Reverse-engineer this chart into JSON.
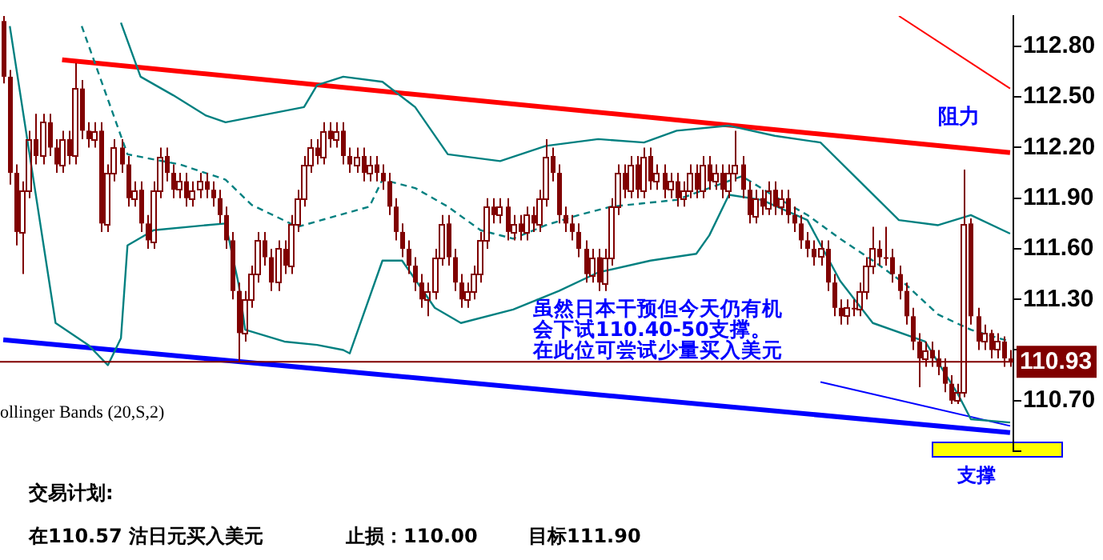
{
  "chart_data": {
    "type": "candlestick",
    "color": "#800000",
    "categories": [
      null,
      null,
      null,
      null,
      null,
      null,
      null,
      null,
      null,
      null,
      null,
      null,
      null,
      null,
      null,
      null,
      null,
      null,
      null,
      null,
      null,
      null,
      null,
      null,
      null,
      null,
      null,
      null,
      null,
      null,
      null,
      null,
      null,
      null,
      null,
      null,
      null,
      null,
      null,
      null,
      null,
      null,
      null,
      null,
      null,
      null,
      null,
      null,
      null,
      null,
      null,
      null,
      null,
      null,
      null,
      null,
      null,
      null,
      null,
      null,
      null,
      null,
      null,
      null,
      null,
      null,
      null,
      null,
      null,
      null,
      null,
      null,
      null,
      null,
      null,
      null,
      null,
      null,
      null,
      null,
      null,
      null,
      null,
      null,
      null,
      null,
      null,
      null,
      null,
      null,
      null,
      null,
      null,
      null,
      null,
      null,
      null,
      null,
      null,
      null,
      null,
      null,
      null,
      null,
      null,
      null,
      null,
      null,
      null,
      null,
      null,
      null,
      null,
      null,
      null,
      null,
      null,
      null,
      null,
      null,
      null,
      null,
      null,
      null,
      null,
      null,
      null,
      null,
      null,
      null,
      null,
      null,
      null,
      null,
      null,
      null,
      null,
      null,
      null,
      null,
      null,
      null,
      null,
      null,
      null,
      null,
      null,
      null,
      null,
      null,
      null,
      null,
      null,
      null,
      null
    ],
    "ohlc": [
      [
        112.95,
        112.98,
        112.58,
        112.62
      ],
      [
        112.62,
        112.66,
        111.98,
        112.05
      ],
      [
        112.05,
        112.1,
        111.62,
        111.7
      ],
      [
        111.7,
        112.0,
        111.45,
        111.95
      ],
      [
        111.95,
        112.3,
        111.9,
        112.25
      ],
      [
        112.25,
        112.4,
        112.1,
        112.15
      ],
      [
        112.15,
        112.4,
        112.1,
        112.35
      ],
      [
        112.35,
        112.4,
        112.15,
        112.2
      ],
      [
        112.2,
        112.25,
        112.05,
        112.1
      ],
      [
        112.1,
        112.3,
        112.05,
        112.25
      ],
      [
        112.25,
        112.3,
        112.1,
        112.15
      ],
      [
        112.15,
        112.7,
        112.1,
        112.55
      ],
      [
        112.55,
        112.6,
        112.25,
        112.3
      ],
      [
        112.3,
        112.35,
        112.2,
        112.25
      ],
      [
        112.25,
        112.35,
        112.2,
        112.3
      ],
      [
        112.3,
        112.35,
        111.7,
        111.75
      ],
      [
        111.75,
        112.1,
        111.7,
        112.05
      ],
      [
        112.05,
        112.25,
        112.0,
        112.2
      ],
      [
        112.2,
        112.25,
        112.05,
        112.1
      ],
      [
        112.1,
        112.15,
        111.85,
        111.9
      ],
      [
        111.9,
        112.0,
        111.85,
        111.95
      ],
      [
        111.95,
        112.0,
        111.7,
        111.75
      ],
      [
        111.75,
        111.8,
        111.6,
        111.65
      ],
      [
        111.65,
        112.0,
        111.6,
        111.95
      ],
      [
        111.95,
        112.2,
        111.9,
        112.15
      ],
      [
        112.15,
        112.2,
        112.0,
        112.05
      ],
      [
        112.05,
        112.1,
        111.9,
        111.95
      ],
      [
        111.95,
        112.05,
        111.9,
        112.0
      ],
      [
        112.0,
        112.05,
        111.85,
        111.9
      ],
      [
        111.9,
        112.0,
        111.85,
        111.95
      ],
      [
        111.95,
        112.05,
        111.9,
        112.0
      ],
      [
        112.0,
        112.05,
        111.9,
        111.95
      ],
      [
        111.95,
        112.0,
        111.85,
        111.9
      ],
      [
        111.9,
        111.95,
        111.75,
        111.8
      ],
      [
        111.8,
        111.85,
        111.6,
        111.65
      ],
      [
        111.65,
        111.7,
        111.3,
        111.35
      ],
      [
        111.35,
        111.4,
        110.93,
        111.1
      ],
      [
        111.1,
        111.35,
        111.05,
        111.3
      ],
      [
        111.3,
        111.5,
        111.25,
        111.45
      ],
      [
        111.45,
        111.7,
        111.4,
        111.65
      ],
      [
        111.65,
        111.7,
        111.5,
        111.55
      ],
      [
        111.55,
        111.6,
        111.35,
        111.4
      ],
      [
        111.4,
        111.65,
        111.35,
        111.6
      ],
      [
        111.6,
        111.65,
        111.45,
        111.5
      ],
      [
        111.5,
        111.8,
        111.45,
        111.75
      ],
      [
        111.75,
        111.95,
        111.7,
        111.9
      ],
      [
        111.9,
        112.15,
        111.85,
        112.1
      ],
      [
        112.1,
        112.25,
        112.05,
        112.2
      ],
      [
        112.2,
        112.25,
        112.1,
        112.15
      ],
      [
        112.15,
        112.35,
        112.1,
        112.3
      ],
      [
        112.3,
        112.35,
        112.2,
        112.25
      ],
      [
        112.25,
        112.35,
        112.2,
        112.3
      ],
      [
        112.3,
        112.35,
        112.1,
        112.15
      ],
      [
        112.15,
        112.2,
        112.05,
        112.1
      ],
      [
        112.1,
        112.2,
        112.05,
        112.15
      ],
      [
        112.15,
        112.2,
        112.0,
        112.05
      ],
      [
        112.05,
        112.15,
        112.0,
        112.1
      ],
      [
        112.1,
        112.15,
        112.0,
        112.05
      ],
      [
        112.05,
        112.1,
        111.95,
        112.0
      ],
      [
        112.0,
        112.05,
        111.8,
        111.85
      ],
      [
        111.85,
        111.9,
        111.65,
        111.7
      ],
      [
        111.7,
        111.75,
        111.55,
        111.6
      ],
      [
        111.6,
        111.65,
        111.45,
        111.5
      ],
      [
        111.5,
        111.55,
        111.35,
        111.4
      ],
      [
        111.4,
        111.45,
        111.25,
        111.3
      ],
      [
        111.3,
        111.4,
        111.2,
        111.35
      ],
      [
        111.35,
        111.6,
        111.3,
        111.55
      ],
      [
        111.55,
        111.8,
        111.5,
        111.75
      ],
      [
        111.75,
        111.8,
        111.5,
        111.55
      ],
      [
        111.55,
        111.6,
        111.35,
        111.4
      ],
      [
        111.4,
        111.45,
        111.25,
        111.3
      ],
      [
        111.3,
        111.4,
        111.25,
        111.35
      ],
      [
        111.35,
        111.5,
        111.3,
        111.45
      ],
      [
        111.45,
        111.7,
        111.4,
        111.65
      ],
      [
        111.65,
        111.9,
        111.6,
        111.85
      ],
      [
        111.85,
        111.9,
        111.75,
        111.8
      ],
      [
        111.8,
        111.9,
        111.75,
        111.85
      ],
      [
        111.85,
        111.9,
        111.65,
        111.7
      ],
      [
        111.7,
        111.8,
        111.65,
        111.75
      ],
      [
        111.75,
        111.8,
        111.65,
        111.7
      ],
      [
        111.7,
        111.85,
        111.65,
        111.8
      ],
      [
        111.8,
        111.85,
        111.7,
        111.75
      ],
      [
        111.75,
        111.95,
        111.7,
        111.9
      ],
      [
        111.9,
        112.25,
        111.85,
        112.15
      ],
      [
        112.15,
        112.2,
        112.0,
        112.05
      ],
      [
        112.05,
        112.1,
        111.75,
        111.8
      ],
      [
        111.8,
        111.85,
        111.7,
        111.75
      ],
      [
        111.75,
        111.8,
        111.65,
        111.7
      ],
      [
        111.7,
        111.75,
        111.55,
        111.6
      ],
      [
        111.6,
        111.65,
        111.4,
        111.45
      ],
      [
        111.45,
        111.6,
        111.4,
        111.55
      ],
      [
        111.55,
        111.6,
        111.35,
        111.4
      ],
      [
        111.4,
        111.6,
        111.35,
        111.55
      ],
      [
        111.55,
        111.9,
        111.5,
        111.85
      ],
      [
        111.85,
        112.1,
        111.8,
        112.05
      ],
      [
        112.05,
        112.1,
        111.9,
        111.95
      ],
      [
        111.95,
        112.15,
        111.9,
        112.1
      ],
      [
        112.1,
        112.15,
        111.9,
        111.95
      ],
      [
        111.95,
        112.2,
        111.9,
        112.15
      ],
      [
        112.15,
        112.2,
        111.95,
        112.0
      ],
      [
        112.0,
        112.1,
        111.95,
        112.05
      ],
      [
        112.05,
        112.1,
        111.9,
        111.95
      ],
      [
        111.95,
        112.05,
        111.9,
        112.0
      ],
      [
        112.0,
        112.05,
        111.85,
        111.9
      ],
      [
        111.9,
        112.0,
        111.85,
        111.95
      ],
      [
        111.95,
        112.1,
        111.9,
        112.05
      ],
      [
        112.05,
        112.1,
        111.9,
        111.95
      ],
      [
        111.95,
        112.15,
        111.9,
        112.1
      ],
      [
        112.1,
        112.15,
        111.95,
        112.0
      ],
      [
        112.0,
        112.1,
        111.95,
        112.05
      ],
      [
        112.05,
        112.1,
        111.9,
        111.95
      ],
      [
        111.95,
        112.1,
        111.9,
        112.05
      ],
      [
        112.05,
        112.3,
        112.0,
        112.1
      ],
      [
        112.1,
        112.15,
        111.9,
        111.95
      ],
      [
        111.95,
        112.0,
        111.75,
        111.8
      ],
      [
        111.8,
        111.95,
        111.75,
        111.9
      ],
      [
        111.9,
        111.95,
        111.8,
        111.85
      ],
      [
        111.85,
        112.0,
        111.8,
        111.95
      ],
      [
        111.95,
        112.0,
        111.8,
        111.85
      ],
      [
        111.85,
        111.95,
        111.8,
        111.9
      ],
      [
        111.9,
        111.95,
        111.75,
        111.8
      ],
      [
        111.8,
        111.85,
        111.7,
        111.75
      ],
      [
        111.75,
        111.8,
        111.6,
        111.65
      ],
      [
        111.65,
        111.7,
        111.55,
        111.6
      ],
      [
        111.6,
        111.65,
        111.5,
        111.55
      ],
      [
        111.55,
        111.65,
        111.5,
        111.6
      ],
      [
        111.6,
        111.65,
        111.35,
        111.4
      ],
      [
        111.4,
        111.45,
        111.2,
        111.25
      ],
      [
        111.25,
        111.3,
        111.15,
        111.2
      ],
      [
        111.2,
        111.3,
        111.15,
        111.25
      ],
      [
        111.25,
        111.3,
        111.2,
        111.25
      ],
      [
        111.25,
        111.4,
        111.2,
        111.35
      ],
      [
        111.35,
        111.55,
        111.3,
        111.5
      ],
      [
        111.5,
        111.73,
        111.45,
        111.6
      ],
      [
        111.6,
        111.65,
        111.5,
        111.55
      ],
      [
        111.55,
        111.73,
        111.5,
        111.55
      ],
      [
        111.55,
        111.6,
        111.4,
        111.45
      ],
      [
        111.45,
        111.5,
        111.3,
        111.35
      ],
      [
        111.35,
        111.4,
        111.15,
        111.2
      ],
      [
        111.2,
        111.25,
        111.0,
        111.05
      ],
      [
        111.05,
        111.1,
        110.78,
        110.95
      ],
      [
        110.95,
        111.05,
        110.9,
        111.0
      ],
      [
        111.0,
        111.05,
        110.9,
        110.95
      ],
      [
        110.95,
        111.0,
        110.85,
        110.9
      ],
      [
        110.9,
        110.95,
        110.75,
        110.8
      ],
      [
        110.8,
        110.85,
        110.68,
        110.7
      ],
      [
        110.7,
        110.8,
        110.68,
        110.75
      ],
      [
        110.75,
        112.07,
        110.72,
        111.75
      ],
      [
        111.75,
        111.78,
        111.15,
        111.2
      ],
      [
        111.2,
        111.25,
        111.0,
        111.05
      ],
      [
        111.05,
        111.15,
        111.0,
        111.1
      ],
      [
        111.1,
        111.12,
        110.95,
        111.0
      ],
      [
        111.0,
        111.1,
        110.95,
        111.05
      ],
      [
        111.05,
        111.08,
        110.9,
        110.95
      ],
      [
        110.95,
        111.0,
        110.9,
        110.93
      ]
    ],
    "series": [
      {
        "type": "line",
        "color": "#008080",
        "values": [
          null,
          null,
          null,
          null,
          null,
          null,
          null,
          null,
          null,
          null,
          null,
          null,
          null,
          null,
          null,
          null,
          null,
          null,
          112.94,
          null,
          null,
          112.62,
          null,
          null,
          null,
          null,
          112.51,
          null,
          null,
          null,
          null,
          112.39,
          null,
          null,
          112.35,
          null,
          null,
          null,
          null,
          null,
          null,
          null,
          null,
          null,
          null,
          null,
          112.44,
          null,
          112.57,
          null,
          null,
          null,
          112.62,
          null,
          null,
          null,
          null,
          null,
          112.59,
          null,
          null,
          null,
          null,
          112.44,
          null,
          null,
          null,
          null,
          112.16,
          null,
          null,
          null,
          null,
          null,
          null,
          null,
          112.12,
          null,
          null,
          null,
          null,
          null,
          null,
          112.21,
          null,
          null,
          null,
          null,
          null,
          null,
          null,
          112.25,
          null,
          null,
          null,
          null,
          null,
          null,
          112.23,
          null,
          null,
          null,
          null,
          112.3,
          null,
          null,
          null,
          null,
          null,
          null,
          null,
          112.33,
          null,
          null,
          null,
          null,
          null,
          null,
          112.27,
          null,
          null,
          null,
          null,
          null,
          null,
          112.23,
          null,
          null,
          null,
          null,
          null,
          null,
          null,
          null,
          null,
          null,
          null,
          111.77,
          null,
          null,
          null,
          null,
          null,
          111.74,
          null,
          null,
          null,
          null,
          111.8,
          null,
          null,
          null,
          null,
          null,
          111.69
        ]
      },
      {
        "type": "line",
        "color": "#008080",
        "line_style": "dashed",
        "values": [
          null,
          null,
          null,
          null,
          null,
          null,
          null,
          null,
          null,
          null,
          null,
          null,
          112.92,
          null,
          null,
          null,
          null,
          null,
          null,
          112.16,
          null,
          null,
          null,
          null,
          null,
          null,
          null,
          112.1,
          null,
          null,
          null,
          null,
          null,
          null,
          112.01,
          null,
          null,
          null,
          111.86,
          null,
          null,
          null,
          null,
          null,
          null,
          111.73,
          null,
          null,
          null,
          null,
          null,
          null,
          null,
          null,
          null,
          null,
          111.85,
          null,
          112.01,
          null,
          null,
          null,
          null,
          111.96,
          null,
          null,
          null,
          null,
          111.85,
          null,
          null,
          null,
          null,
          111.71,
          null,
          null,
          null,
          null,
          111.66,
          null,
          null,
          null,
          null,
          111.74,
          null,
          null,
          null,
          null,
          111.8,
          null,
          null,
          null,
          null,
          111.85,
          null,
          null,
          null,
          null,
          111.87,
          null,
          null,
          null,
          null,
          111.89,
          null,
          null,
          null,
          null,
          111.96,
          null,
          null,
          null,
          null,
          112.03,
          null,
          null,
          null,
          null,
          111.91,
          null,
          null,
          null,
          null,
          111.8,
          null,
          null,
          null,
          null,
          111.66,
          null,
          null,
          null,
          null,
          111.53,
          null,
          null,
          null,
          null,
          111.39,
          null,
          null,
          null,
          null,
          111.21,
          null,
          null,
          null,
          null,
          111.12,
          null,
          null,
          null,
          null,
          null,
          111.05
        ]
      },
      {
        "type": "line",
        "color": "#008080",
        "values": [
          null,
          112.92,
          null,
          null,
          null,
          null,
          null,
          null,
          111.16,
          null,
          null,
          null,
          null,
          111.03,
          null,
          null,
          110.91,
          null,
          111.07,
          111.62,
          null,
          null,
          null,
          111.71,
          null,
          null,
          null,
          null,
          null,
          null,
          null,
          111.74,
          null,
          null,
          111.75,
          null,
          111.39,
          111.12,
          null,
          null,
          null,
          null,
          null,
          111.05,
          null,
          null,
          null,
          null,
          111.03,
          null,
          null,
          null,
          111,
          110.98,
          null,
          null,
          null,
          null,
          111.53,
          null,
          null,
          111.53,
          null,
          null,
          null,
          null,
          111.25,
          null,
          null,
          null,
          111.16,
          null,
          null,
          null,
          null,
          null,
          null,
          null,
          111.24,
          null,
          null,
          null,
          null,
          null,
          null,
          111.35,
          null,
          null,
          null,
          null,
          null,
          111.46,
          null,
          null,
          null,
          null,
          null,
          null,
          null,
          111.53,
          null,
          null,
          null,
          null,
          null,
          null,
          111.57,
          null,
          111.68,
          null,
          null,
          111.92,
          null,
          null,
          null,
          null,
          111.89,
          null,
          null,
          null,
          null,
          null,
          null,
          111.77,
          null,
          null,
          null,
          null,
          111.41,
          null,
          null,
          null,
          null,
          111.16,
          null,
          null,
          null,
          null,
          null,
          null,
          null,
          111.05,
          null,
          null,
          null,
          null,
          110.74,
          null,
          110.59,
          null,
          null,
          null,
          null,
          null,
          110.57
        ]
      },
      {
        "type": "line",
        "color": "#ff0000",
        "values": [
          null,
          null,
          null,
          null,
          null,
          null,
          null,
          null,
          null,
          112.72,
          null,
          null,
          null,
          null,
          null,
          null,
          null,
          null,
          null,
          null,
          null,
          null,
          null,
          null,
          null,
          null,
          null,
          null,
          null,
          null,
          null,
          null,
          null,
          null,
          null,
          null,
          null,
          null,
          null,
          null,
          null,
          null,
          null,
          null,
          null,
          null,
          null,
          null,
          null,
          null,
          null,
          null,
          null,
          null,
          null,
          null,
          null,
          null,
          null,
          null,
          null,
          null,
          null,
          null,
          null,
          null,
          null,
          null,
          null,
          null,
          null,
          null,
          null,
          null,
          null,
          null,
          null,
          null,
          null,
          null,
          null,
          null,
          null,
          null,
          null,
          null,
          null,
          null,
          null,
          null,
          null,
          null,
          null,
          null,
          null,
          null,
          null,
          null,
          null,
          null,
          null,
          null,
          null,
          null,
          null,
          null,
          null,
          null,
          null,
          null,
          null,
          null,
          null,
          null,
          null,
          null,
          null,
          null,
          null,
          null,
          null,
          null,
          null,
          null,
          null,
          null,
          null,
          null,
          null,
          null,
          null,
          null,
          null,
          null,
          null,
          null,
          null,
          null,
          null,
          null,
          null,
          null,
          null,
          null,
          null,
          null,
          null,
          null,
          null,
          null,
          null,
          null,
          null,
          null,
          112.17
        ]
      },
      {
        "type": "line",
        "color": "#ff0000",
        "values": [
          null,
          null,
          null,
          null,
          null,
          null,
          null,
          null,
          null,
          null,
          null,
          null,
          null,
          null,
          null,
          null,
          null,
          null,
          null,
          null,
          null,
          null,
          null,
          null,
          null,
          null,
          null,
          null,
          null,
          null,
          null,
          null,
          null,
          null,
          null,
          null,
          null,
          null,
          null,
          null,
          null,
          null,
          null,
          null,
          null,
          null,
          null,
          null,
          null,
          null,
          null,
          null,
          null,
          null,
          null,
          null,
          null,
          null,
          null,
          null,
          null,
          null,
          null,
          null,
          null,
          null,
          null,
          null,
          null,
          null,
          null,
          null,
          null,
          null,
          null,
          null,
          null,
          null,
          null,
          null,
          null,
          null,
          null,
          null,
          null,
          null,
          null,
          null,
          null,
          null,
          null,
          null,
          null,
          null,
          null,
          null,
          null,
          null,
          null,
          null,
          null,
          null,
          null,
          null,
          null,
          null,
          null,
          null,
          null,
          null,
          null,
          null,
          null,
          null,
          null,
          null,
          null,
          null,
          null,
          null,
          null,
          null,
          null,
          null,
          null,
          null,
          null,
          null,
          null,
          null,
          null,
          null,
          null,
          null,
          null,
          null,
          null,
          112.98,
          null,
          null,
          null,
          null,
          null,
          null,
          null,
          null,
          null,
          null,
          null,
          null,
          null,
          null,
          null,
          null,
          112.55
        ]
      },
      {
        "type": "line",
        "color": "#0000ff",
        "values": [
          111.06,
          null,
          null,
          null,
          null,
          null,
          null,
          null,
          null,
          null,
          null,
          null,
          null,
          null,
          null,
          null,
          null,
          null,
          null,
          null,
          null,
          null,
          null,
          null,
          null,
          null,
          null,
          null,
          null,
          null,
          null,
          null,
          null,
          null,
          null,
          null,
          null,
          null,
          null,
          null,
          null,
          null,
          null,
          null,
          null,
          null,
          null,
          null,
          null,
          null,
          null,
          null,
          null,
          null,
          null,
          null,
          null,
          null,
          null,
          null,
          null,
          null,
          null,
          null,
          null,
          null,
          null,
          null,
          null,
          null,
          null,
          null,
          null,
          null,
          null,
          null,
          null,
          null,
          null,
          null,
          null,
          null,
          null,
          null,
          null,
          null,
          null,
          null,
          null,
          null,
          null,
          null,
          null,
          null,
          null,
          null,
          null,
          null,
          null,
          null,
          null,
          null,
          null,
          null,
          null,
          null,
          null,
          null,
          null,
          null,
          null,
          null,
          null,
          null,
          null,
          null,
          null,
          null,
          null,
          null,
          null,
          null,
          null,
          null,
          null,
          null,
          null,
          null,
          null,
          null,
          null,
          null,
          null,
          null,
          null,
          null,
          null,
          null,
          null,
          null,
          null,
          null,
          null,
          null,
          null,
          null,
          null,
          null,
          null,
          null,
          null,
          null,
          null,
          null,
          110.51
        ]
      },
      {
        "type": "line",
        "color": "#0000ff",
        "values": [
          null,
          null,
          null,
          null,
          null,
          null,
          null,
          null,
          null,
          null,
          null,
          null,
          null,
          null,
          null,
          null,
          null,
          null,
          null,
          null,
          null,
          null,
          null,
          null,
          null,
          null,
          null,
          null,
          null,
          null,
          null,
          null,
          null,
          null,
          null,
          null,
          null,
          null,
          null,
          null,
          null,
          null,
          null,
          null,
          null,
          null,
          null,
          null,
          null,
          null,
          null,
          null,
          null,
          null,
          null,
          null,
          null,
          null,
          null,
          null,
          null,
          null,
          null,
          null,
          null,
          null,
          null,
          null,
          null,
          null,
          null,
          null,
          null,
          null,
          null,
          null,
          null,
          null,
          null,
          null,
          null,
          null,
          null,
          null,
          null,
          null,
          null,
          null,
          null,
          null,
          null,
          null,
          null,
          null,
          null,
          null,
          null,
          null,
          null,
          null,
          null,
          null,
          null,
          null,
          null,
          null,
          null,
          null,
          null,
          null,
          null,
          null,
          null,
          null,
          null,
          null,
          null,
          null,
          null,
          null,
          null,
          null,
          null,
          null,
          null,
          110.81,
          null,
          null,
          null,
          null,
          null,
          null,
          null,
          null,
          null,
          null,
          null,
          null,
          null,
          null,
          null,
          null,
          null,
          null,
          null,
          null,
          null,
          null,
          null,
          null,
          null,
          null,
          null,
          null,
          110.55
        ]
      }
    ],
    "ylim": [
      110.4,
      112.98
    ],
    "yticks": [
      {
        "value": 112.8,
        "label": "112.80"
      },
      {
        "value": 112.5,
        "label": "112.50"
      },
      {
        "value": 112.2,
        "label": "112.20"
      },
      {
        "value": 111.9,
        "label": "111.90"
      },
      {
        "value": 111.6,
        "label": "111.60"
      },
      {
        "value": 111.3,
        "label": "111.30"
      },
      {
        "value": 111.0,
        "label": null
      },
      {
        "value": 110.7,
        "label": "110.70"
      },
      {
        "value": 110.4,
        "label": null
      }
    ],
    "tick_labels": "y",
    "ref_lines": [
      {
        "axis": "y",
        "value": 110.93,
        "label": "110.93",
        "color": "#800000"
      }
    ],
    "annotations": [
      "阻力",
      "支撑",
      "虽然日本干预但今天仍有机会下试110.40-50支撑。在此位可尝试少量买入美元",
      "ollinger Bands (20,S,2)",
      "交易计划:",
      "在110.57 沽日元买入美元",
      "止损：110.00",
      "目标111.90"
    ]
  }
}
